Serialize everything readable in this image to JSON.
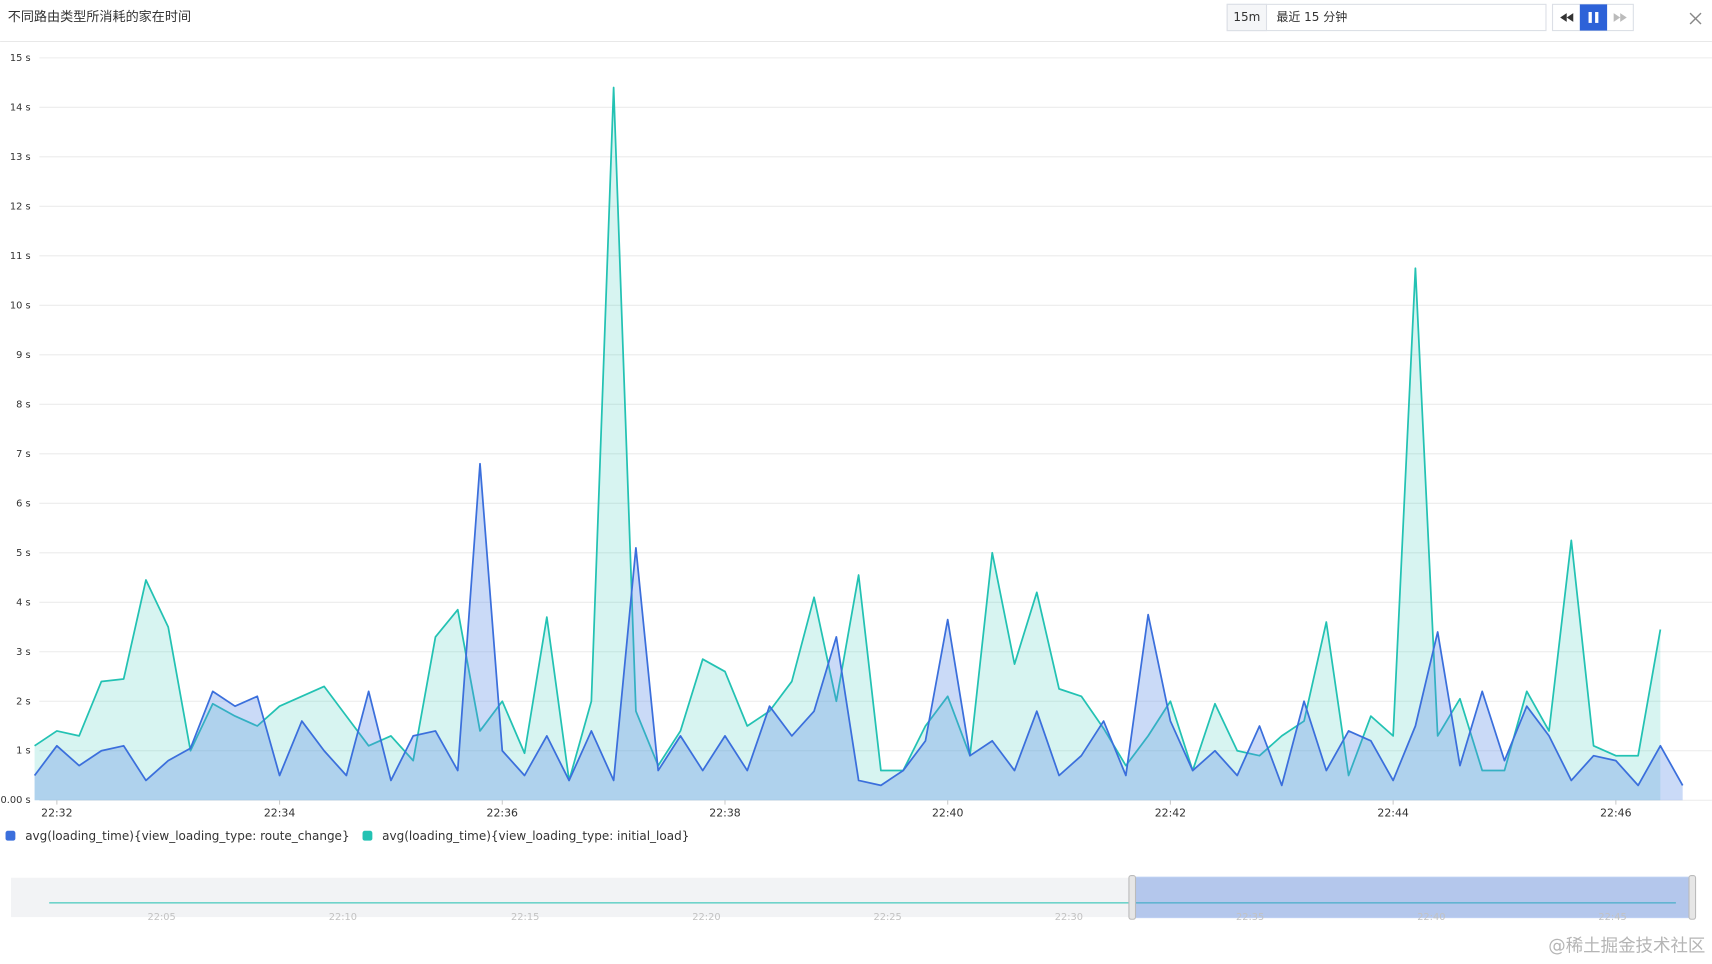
{
  "chart_data": {
    "type": "area",
    "title": "不同路由类型所消耗的家在时间",
    "categories": [
      null,
      "22:32",
      null,
      null,
      null,
      null,
      null,
      null,
      null,
      null,
      null,
      "22:34",
      null,
      null,
      null,
      null,
      null,
      null,
      null,
      null,
      null,
      "22:36",
      null,
      null,
      null,
      null,
      null,
      null,
      null,
      null,
      null,
      "22:38",
      null,
      null,
      null,
      null,
      null,
      null,
      null,
      null,
      null,
      "22:40",
      null,
      null,
      null,
      null,
      null,
      null,
      null,
      null,
      null,
      "22:42",
      null,
      null,
      null,
      null,
      null,
      null,
      null,
      null,
      null,
      "22:44",
      null,
      null,
      null,
      null,
      null,
      null,
      null,
      null,
      null,
      "22:46",
      null,
      null,
      null
    ],
    "series": [
      {
        "name": "avg(loading_time){view_loading_type: initial_load}",
        "color": "#23c2b3",
        "values": [
          1.1,
          1.4,
          1.3,
          2.4,
          2.45,
          4.45,
          3.5,
          1.0,
          1.95,
          1.7,
          1.5,
          1.9,
          2.1,
          2.3,
          1.7,
          1.1,
          1.3,
          0.8,
          3.3,
          3.85,
          1.4,
          2.0,
          0.95,
          3.7,
          0.4,
          2.0,
          14.4,
          1.8,
          0.7,
          1.4,
          2.85,
          2.6,
          1.5,
          1.8,
          2.4,
          4.1,
          2.0,
          4.55,
          0.6,
          0.6,
          1.5,
          2.1,
          0.9,
          5.0,
          2.75,
          4.2,
          2.25,
          2.1,
          1.45,
          0.7,
          1.3,
          2.0,
          0.6,
          1.95,
          1.0,
          0.9,
          1.3,
          1.6,
          3.6,
          0.5,
          1.7,
          1.3,
          10.75,
          1.3,
          2.05,
          0.6,
          0.6,
          2.2,
          1.4,
          5.25,
          1.1,
          0.9,
          0.9,
          3.45,
          null
        ]
      },
      {
        "name": "avg(loading_time){view_loading_type: route_change}",
        "color": "#3b6fdc",
        "values": [
          0.5,
          1.1,
          0.7,
          1.0,
          1.1,
          0.4,
          0.8,
          1.05,
          2.2,
          1.9,
          2.1,
          0.5,
          1.6,
          1.0,
          0.5,
          2.2,
          0.4,
          1.3,
          1.4,
          0.6,
          6.8,
          1.0,
          0.5,
          1.3,
          0.4,
          1.4,
          0.4,
          5.1,
          0.6,
          1.3,
          0.6,
          1.3,
          0.6,
          1.9,
          1.3,
          1.8,
          3.3,
          0.4,
          0.3,
          0.6,
          1.2,
          3.65,
          0.9,
          1.2,
          0.6,
          1.8,
          0.5,
          0.9,
          1.6,
          0.5,
          3.75,
          1.6,
          0.6,
          1.0,
          0.5,
          1.5,
          0.3,
          2.0,
          0.6,
          1.4,
          1.2,
          0.4,
          1.5,
          3.4,
          0.7,
          2.2,
          0.8,
          1.9,
          1.3,
          0.4,
          0.9,
          0.8,
          0.3,
          1.1,
          0.3
        ]
      }
    ],
    "ylim": [
      0,
      15
    ],
    "yticks": [
      {
        "value": 0,
        "label": "0.00 s"
      },
      {
        "value": 1,
        "label": "1 s"
      },
      {
        "value": 2,
        "label": "2 s"
      },
      {
        "value": 3,
        "label": "3 s"
      },
      {
        "value": 4,
        "label": "4 s"
      },
      {
        "value": 5,
        "label": "5 s"
      },
      {
        "value": 6,
        "label": "6 s"
      },
      {
        "value": 7,
        "label": "7 s"
      },
      {
        "value": 8,
        "label": "8 s"
      },
      {
        "value": 9,
        "label": "9 s"
      },
      {
        "value": 10,
        "label": "10 s"
      },
      {
        "value": 11,
        "label": "11 s"
      },
      {
        "value": 12,
        "label": "12 s"
      },
      {
        "value": 13,
        "label": "13 s"
      },
      {
        "value": 14,
        "label": "14 s"
      },
      {
        "value": 15,
        "label": "15 s"
      }
    ],
    "grid": true
  },
  "toolbar": {
    "range_short": "15m",
    "range_label": "最近 15 分钟"
  },
  "navigator": {
    "labels": [
      "22:05",
      "22:10",
      "22:15",
      "22:20",
      "22:25",
      "22:30",
      "22:35",
      "22:40",
      "22:45"
    ]
  },
  "watermark": "@稀土掘金技术社区"
}
